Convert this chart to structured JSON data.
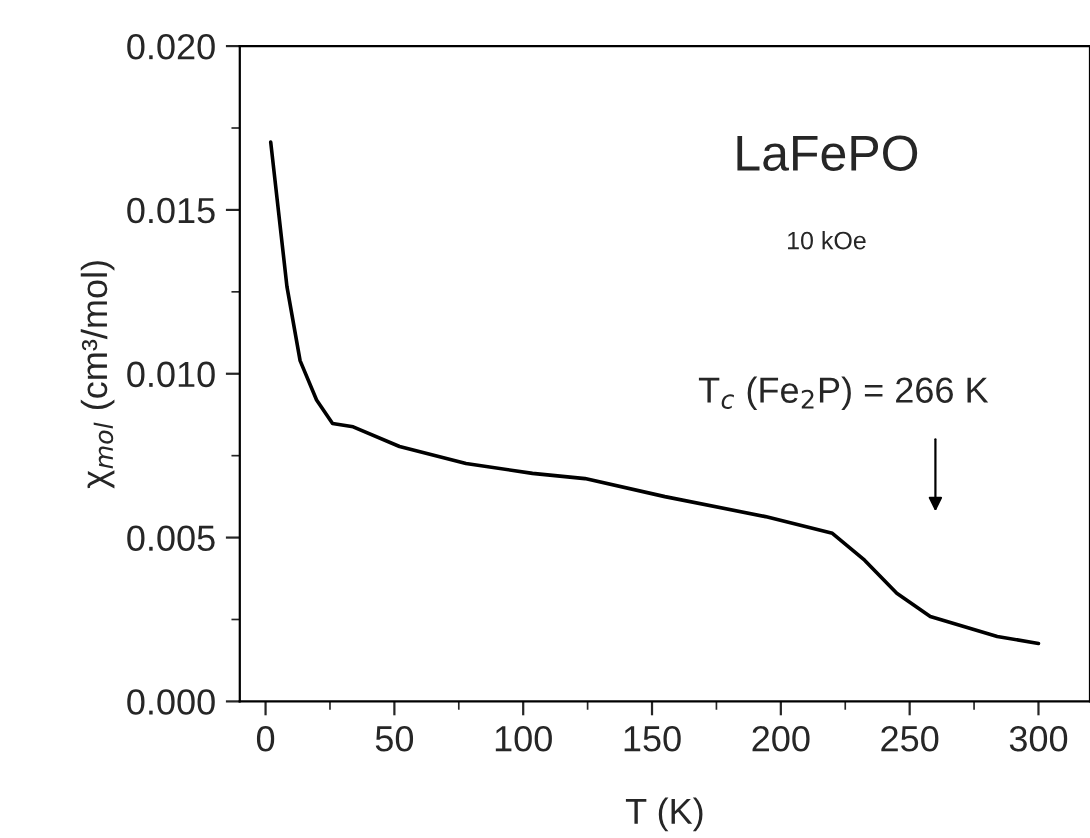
{
  "chart_data": {
    "type": "line",
    "xlabel": "T (K)",
    "ylabel": "χ$_{mol}$ (cm³/mol)",
    "x": [
      2,
      8.3,
      13.4,
      19.8,
      26,
      34,
      52,
      77.8,
      103.6,
      124,
      155,
      194,
      220,
      232.5,
      245,
      258,
      284,
      300
    ],
    "series": [
      {
        "color": "#000000",
        "values": [
          0.01707,
          0.01266,
          0.0104,
          0.0092,
          0.00848,
          0.00838,
          0.00778,
          0.00726,
          0.00696,
          0.0068,
          0.00625,
          0.00564,
          0.00513,
          0.00431,
          0.0033,
          0.00259,
          0.00198,
          0.00177
        ]
      }
    ],
    "xlim": [
      -10,
      320
    ],
    "xticks": [
      0,
      50,
      100,
      150,
      200,
      250,
      300
    ],
    "ylim": [
      0,
      0.02
    ],
    "yticks": [
      {
        "value": 0,
        "label": "0.000"
      },
      {
        "value": 0.005,
        "label": "0.005"
      },
      {
        "value": 0.01,
        "label": "0.010"
      },
      {
        "value": 0.015,
        "label": "0.015"
      },
      {
        "value": 0.02,
        "label": "0.020"
      }
    ],
    "annotations": [
      "LaFePO",
      "10 kOe",
      "T$_{c}$ (Fe$_{2}$P) = 266 K"
    ],
    "grid": false,
    "legend": false,
    "marker": "none",
    "line_style": "solid"
  }
}
